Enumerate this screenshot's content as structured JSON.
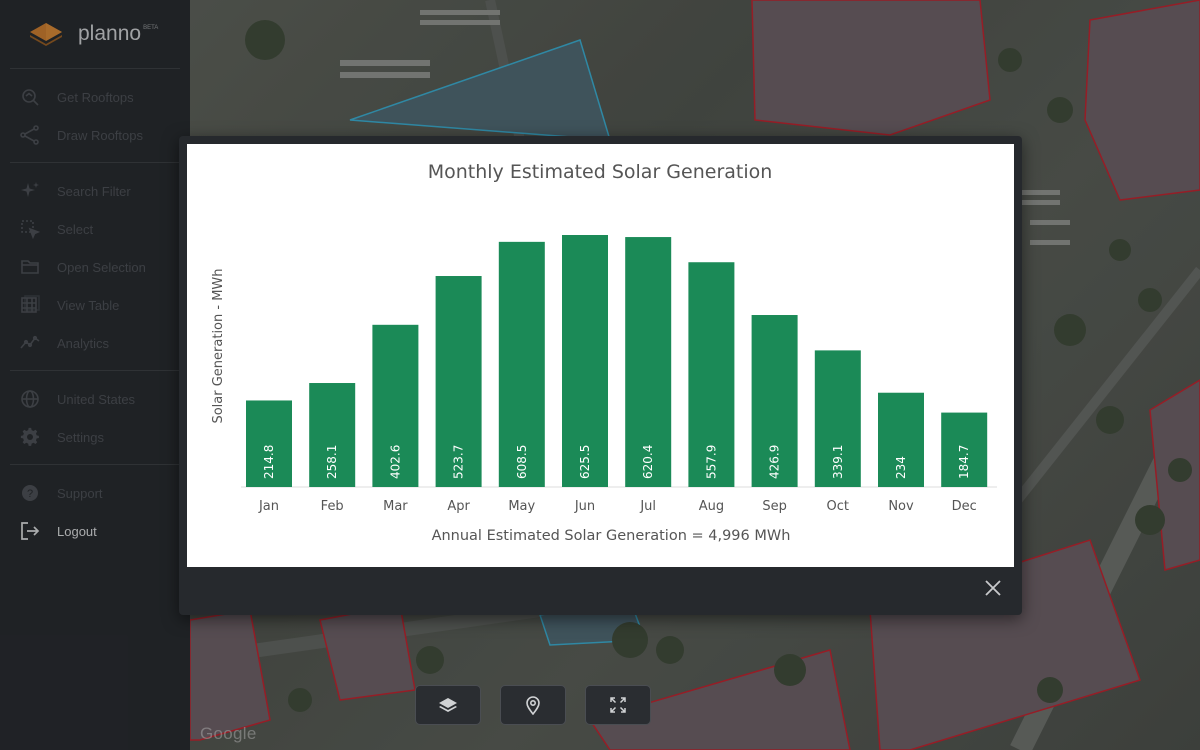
{
  "brand": {
    "name": "planno",
    "badge": "BETA"
  },
  "sidebar": {
    "sections": [
      {
        "items": [
          {
            "label": "Get Rooftops",
            "icon": "rooftop-search-icon"
          },
          {
            "label": "Draw Rooftops",
            "icon": "draw-polygon-icon"
          }
        ]
      },
      {
        "items": [
          {
            "label": "Search Filter",
            "icon": "sparkle-filter-icon"
          },
          {
            "label": "Select",
            "icon": "select-cursor-icon"
          },
          {
            "label": "Open Selection",
            "icon": "folder-icon"
          },
          {
            "label": "View Table",
            "icon": "table-icon"
          },
          {
            "label": "Analytics",
            "icon": "analytics-icon"
          }
        ]
      },
      {
        "items": [
          {
            "label": "United States",
            "icon": "globe-icon"
          },
          {
            "label": "Settings",
            "icon": "gear-icon"
          }
        ]
      },
      {
        "items": [
          {
            "label": "Support",
            "icon": "support-icon"
          },
          {
            "label": "Logout",
            "icon": "logout-icon",
            "active": true
          }
        ]
      }
    ]
  },
  "map": {
    "attribution": "Google"
  },
  "modal": {
    "close_icon": "close-icon"
  },
  "colors": {
    "bar": "#1b8a57",
    "sidebar_bg": "#272a2e",
    "modal_bg": "#26292d"
  },
  "chart_data": {
    "type": "bar",
    "title": "Monthly Estimated Solar Generation",
    "ylabel": "Solar Generation - MWh",
    "xlabel": "",
    "footer": "Annual Estimated Solar Generation = 4,996 MWh",
    "categories": [
      "Jan",
      "Feb",
      "Mar",
      "Apr",
      "May",
      "Jun",
      "Jul",
      "Aug",
      "Sep",
      "Oct",
      "Nov",
      "Dec"
    ],
    "values": [
      214.8,
      258.1,
      402.6,
      523.7,
      608.5,
      625.5,
      620.4,
      557.9,
      426.9,
      339.1,
      234,
      184.7
    ],
    "data_labels": [
      "214.8",
      "258.1",
      "402.6",
      "523.7",
      "608.5",
      "625.5",
      "620.4",
      "557.9",
      "426.9",
      "339.1",
      "234",
      "184.7"
    ],
    "ylim": [
      0,
      625.5
    ],
    "grid": false,
    "legend": "none"
  },
  "controls": [
    {
      "icon": "layers-icon"
    },
    {
      "icon": "location-pin-icon"
    },
    {
      "icon": "fullscreen-icon"
    }
  ]
}
